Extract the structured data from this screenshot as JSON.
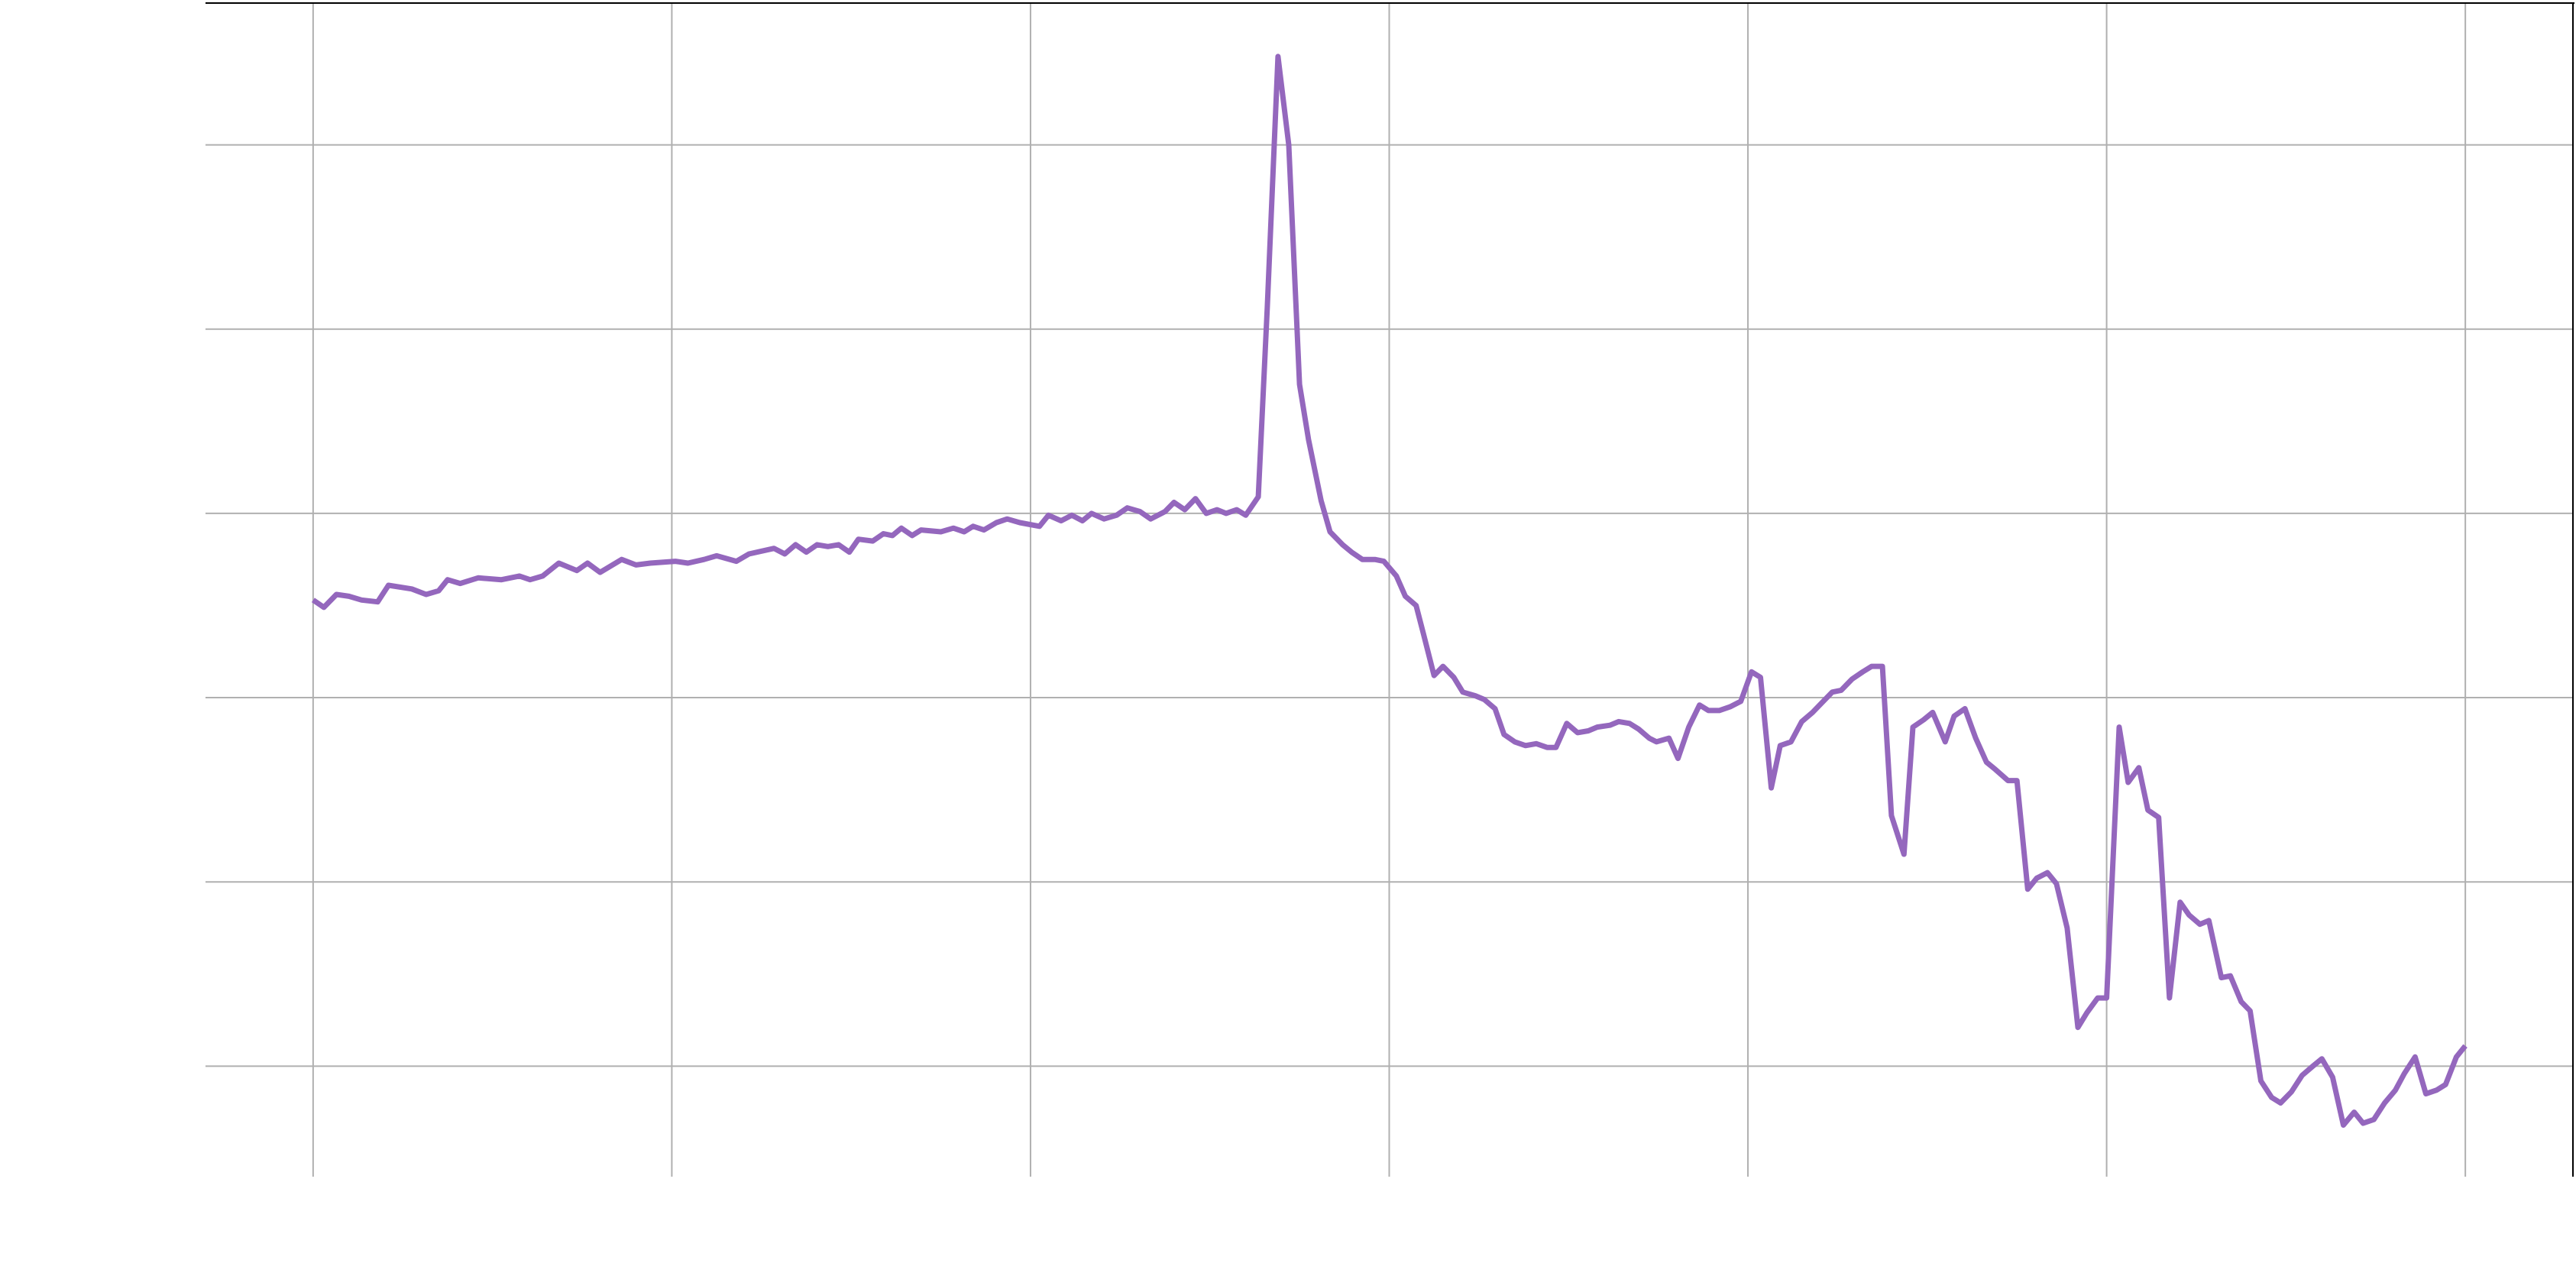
{
  "chart_data": {
    "type": "line",
    "x": [
      0,
      0.6,
      1.3,
      2.0,
      2.7,
      3.6,
      4.2,
      5.5,
      6.3,
      7.0,
      7.5,
      8.2,
      9.2,
      10.5,
      11.5,
      12.1,
      12.8,
      13.7,
      14.7,
      15.3,
      16.0,
      17.2,
      18.0,
      18.8,
      20.2,
      20.9,
      21.8,
      22.5,
      23.6,
      24.3,
      25.7,
      26.3,
      26.9,
      27.5,
      28.1,
      28.7,
      29.3,
      29.9,
      30.4,
      31.2,
      31.8,
      32.3,
      32.8,
      33.4,
      33.9,
      35.0,
      35.7,
      36.3,
      36.8,
      37.4,
      38.1,
      38.7,
      39.4,
      40.5,
      41.0,
      41.7,
      42.3,
      42.9,
      43.4,
      44.1,
      44.8,
      45.4,
      46.1,
      46.7,
      47.5,
      48.0,
      48.6,
      49.2,
      49.8,
      50.4,
      50.9,
      51.5,
      52.0,
      52.7,
      53.2,
      53.8,
      54.4,
      55.0,
      55.5,
      56.2,
      56.7,
      57.4,
      57.9,
      58.5,
      59.2,
      59.7,
      60.4,
      60.9,
      61.5,
      61.9,
      62.5,
      63.0,
      63.6,
      64.1,
      64.8,
      65.3,
      65.9,
      66.4,
      67.0,
      67.6,
      68.2,
      68.8,
      69.3,
      69.9,
      70.5,
      71.1,
      71.6,
      72.3,
      72.8,
      73.4,
      73.9,
      74.5,
      74.9,
      75.6,
      76.1,
      76.7,
      77.3,
      77.8,
      78.4,
      79.0,
      79.6,
      80.2,
      80.7,
      81.3,
      81.8,
      82.4,
      83.0,
      83.6,
      84.1,
      84.7,
      85.2,
      85.8,
      86.4,
      86.9,
      87.5,
      88.0,
      88.7,
      89.2,
      89.8,
      90.3,
      91.0,
      91.5,
      92.1,
      92.7,
      93.3,
      93.8,
      94.5,
      95.0,
      95.6,
      96.1,
      96.7,
      97.2,
      97.8,
      98.4,
      98.9,
      99.5,
      100.0,
      100.7,
      101.2,
      101.8,
      102.3,
      102.9,
      103.5,
      104.1,
      104.6,
      105.2,
      105.7,
      106.4,
      106.9,
      107.5,
      108.0,
      108.6,
      109.2,
      109.7,
      110.3,
      110.9,
      111.5,
      112.0,
      112.6,
      113.2,
      113.8,
      114.3,
      114.9,
      115.5,
      116.1,
      116.6,
      117.2,
      117.8,
      118.4,
      118.9,
      119.5,
      120.0
    ],
    "series": [
      {
        "color": "#9467bd",
        "values": [
          35.3,
          34.9,
          35.6,
          35.5,
          35.3,
          35.2,
          36.1,
          35.9,
          35.6,
          35.8,
          36.4,
          36.2,
          36.5,
          36.4,
          36.6,
          36.4,
          36.6,
          37.3,
          36.9,
          37.3,
          36.8,
          37.5,
          37.2,
          37.3,
          37.4,
          37.3,
          37.5,
          37.7,
          37.4,
          37.8,
          38.1,
          37.8,
          38.3,
          37.9,
          38.3,
          38.2,
          38.3,
          37.9,
          38.6,
          38.5,
          38.9,
          38.8,
          39.2,
          38.8,
          39.1,
          39.0,
          39.2,
          39.0,
          39.3,
          39.1,
          39.5,
          39.7,
          39.5,
          39.3,
          39.9,
          39.6,
          39.9,
          39.6,
          40.0,
          39.7,
          39.9,
          40.3,
          40.1,
          39.7,
          40.1,
          40.6,
          40.2,
          40.8,
          40.0,
          40.2,
          40.0,
          40.2,
          39.9,
          40.9,
          51.2,
          64.8,
          60.0,
          47.0,
          44.0,
          40.7,
          39.0,
          38.3,
          37.9,
          37.5,
          37.5,
          37.4,
          36.6,
          35.5,
          35.0,
          33.5,
          31.2,
          31.7,
          31.1,
          30.3,
          30.1,
          29.9,
          29.4,
          28.0,
          27.6,
          27.4,
          27.5,
          27.3,
          27.3,
          28.6,
          28.1,
          28.2,
          28.4,
          28.5,
          28.7,
          28.6,
          28.3,
          27.8,
          27.6,
          27.8,
          26.7,
          28.4,
          29.6,
          29.3,
          29.3,
          29.5,
          29.8,
          31.4,
          31.1,
          25.1,
          27.4,
          27.6,
          28.7,
          29.2,
          29.7,
          30.3,
          30.4,
          31.0,
          31.4,
          31.7,
          31.7,
          23.6,
          21.5,
          28.4,
          28.8,
          29.2,
          27.6,
          29.0,
          29.4,
          27.8,
          26.5,
          26.1,
          25.5,
          25.5,
          19.6,
          20.2,
          20.5,
          19.9,
          17.5,
          12.1,
          12.9,
          13.7,
          13.7,
          28.4,
          25.4,
          26.2,
          23.9,
          23.5,
          13.7,
          18.9,
          18.2,
          17.7,
          17.9,
          14.8,
          14.9,
          13.5,
          13.0,
          9.2,
          8.3,
          8.0,
          8.6,
          9.5,
          10.0,
          10.4,
          9.4,
          6.8,
          7.5,
          6.9,
          7.1,
          8.0,
          8.7,
          9.6,
          10.5,
          8.5,
          8.7,
          9.0,
          10.5,
          11.1
        ]
      }
    ],
    "xlim": [
      -6,
      126
    ],
    "xticks": [
      0,
      20,
      40,
      60,
      80,
      100,
      120
    ],
    "ylim": [
      4,
      67.7
    ],
    "yticks": [
      10,
      20,
      30,
      40,
      50,
      60
    ],
    "grid": true
  }
}
